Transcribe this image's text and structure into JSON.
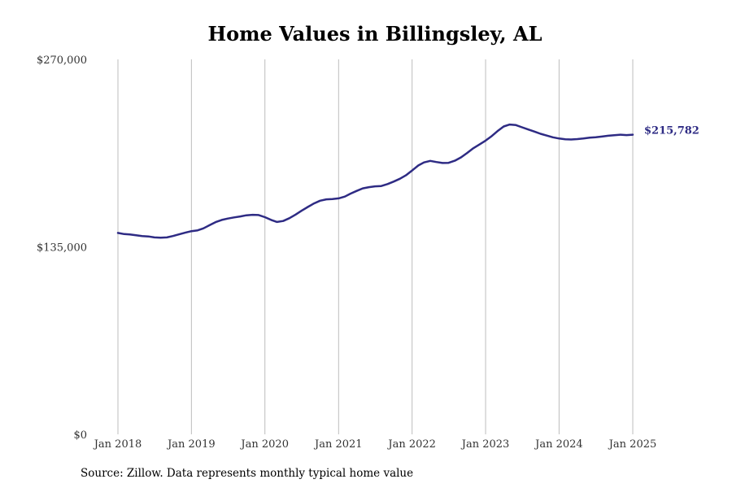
{
  "chart_data": {
    "type": "line",
    "title": "Home Values in Billingsley, AL",
    "xlabel": "",
    "ylabel": "",
    "ylim": [
      0,
      270000
    ],
    "y_ticks": [
      0,
      135000,
      270000
    ],
    "y_tick_labels": [
      "$0",
      "$135,000",
      "$270,000"
    ],
    "x_ticks": [
      "2018-01",
      "2019-01",
      "2020-01",
      "2021-01",
      "2022-01",
      "2023-01",
      "2024-01",
      "2025-01"
    ],
    "x_tick_labels": [
      "Jan 2018",
      "Jan 2019",
      "Jan 2020",
      "Jan 2021",
      "Jan 2022",
      "Jan 2023",
      "Jan 2024",
      "Jan 2025"
    ],
    "grid": "vertical",
    "line_color": "#2e2b84",
    "end_label": "$215,782",
    "series": [
      {
        "x": [
          "2018-01",
          "2018-02",
          "2018-03",
          "2018-04",
          "2018-05",
          "2018-06",
          "2018-07",
          "2018-08",
          "2018-09",
          "2018-10",
          "2018-11",
          "2018-12",
          "2019-01",
          "2019-02",
          "2019-03",
          "2019-04",
          "2019-05",
          "2019-06",
          "2019-07",
          "2019-08",
          "2019-09",
          "2019-10",
          "2019-11",
          "2019-12",
          "2020-01",
          "2020-02",
          "2020-03",
          "2020-04",
          "2020-05",
          "2020-06",
          "2020-07",
          "2020-08",
          "2020-09",
          "2020-10",
          "2020-11",
          "2020-12",
          "2021-01",
          "2021-02",
          "2021-03",
          "2021-04",
          "2021-05",
          "2021-06",
          "2021-07",
          "2021-08",
          "2021-09",
          "2021-10",
          "2021-11",
          "2021-12",
          "2022-01",
          "2022-02",
          "2022-03",
          "2022-04",
          "2022-05",
          "2022-06",
          "2022-07",
          "2022-08",
          "2022-09",
          "2022-10",
          "2022-11",
          "2022-12",
          "2023-01",
          "2023-02",
          "2023-03",
          "2023-04",
          "2023-05",
          "2023-06",
          "2023-07",
          "2023-08",
          "2023-09",
          "2023-10",
          "2023-11",
          "2023-12",
          "2024-01",
          "2024-02",
          "2024-03",
          "2024-04",
          "2024-05",
          "2024-06",
          "2024-07",
          "2024-08",
          "2024-09",
          "2024-10",
          "2024-11",
          "2024-12",
          "2025-01"
        ],
        "values": [
          145000,
          144200,
          143900,
          143300,
          142800,
          142500,
          141800,
          141600,
          141800,
          142800,
          144000,
          145200,
          146300,
          146900,
          148300,
          150600,
          152800,
          154400,
          155400,
          156200,
          156900,
          157700,
          158100,
          157900,
          156400,
          154400,
          152900,
          153600,
          155600,
          158200,
          161000,
          163700,
          166300,
          168200,
          169200,
          169400,
          169900,
          171200,
          173300,
          175300,
          177100,
          178000,
          178600,
          178800,
          180200,
          182000,
          184000,
          186500,
          190000,
          193600,
          195800,
          196900,
          196100,
          195400,
          195500,
          197000,
          199400,
          202600,
          206000,
          208700,
          211500,
          214800,
          218300,
          221700,
          223100,
          222700,
          221100,
          219500,
          218000,
          216400,
          215100,
          213900,
          213000,
          212400,
          212300,
          212600,
          213000,
          213600,
          213900,
          214400,
          215000,
          215400,
          215782,
          215500,
          215782
        ]
      }
    ],
    "source_note": "Source: Zillow. Data represents monthly typical home value"
  }
}
